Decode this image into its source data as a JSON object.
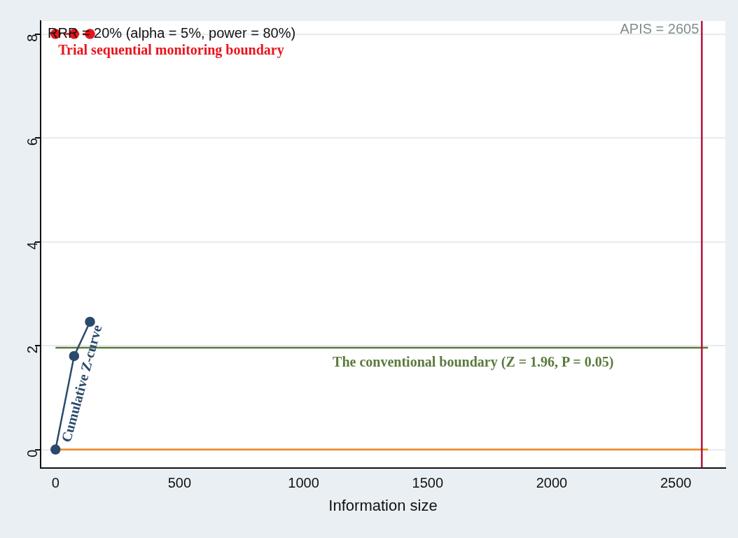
{
  "chart_data": {
    "type": "line",
    "xlabel": "Information size",
    "xlim": [
      -60,
      2700
    ],
    "xticks": [
      0,
      500,
      1000,
      1500,
      2000,
      2500
    ],
    "ylim": [
      -0.35,
      8.25
    ],
    "yticks": [
      0,
      2,
      4,
      6,
      8
    ],
    "grid": "y",
    "legend": false,
    "series": [
      {
        "name": "Trial sequential monitoring boundary",
        "color": "#e8141c",
        "x": [
          0,
          75,
          139
        ],
        "values": [
          8,
          8,
          8
        ],
        "marker": "circle",
        "line_style": "dashed"
      },
      {
        "name": "Cumulative Z-curve",
        "color": "#2b4a6b",
        "x": [
          0,
          75,
          139
        ],
        "values": [
          0,
          1.8,
          2.46
        ],
        "marker": "circle",
        "line_style": "solid"
      },
      {
        "name": "The conventional boundary (Z = 1.96, P = 0.05)",
        "color": "#5b7a3c",
        "x": [
          0,
          2630
        ],
        "values": [
          1.96,
          1.96
        ],
        "marker": "none",
        "line_style": "solid"
      },
      {
        "color": "#e8891e",
        "x": [
          0,
          2630
        ],
        "values": [
          0,
          0
        ],
        "marker": "none",
        "line_style": "solid"
      }
    ],
    "ref_lines": [
      {
        "axis": "x",
        "value": 2605,
        "label": "APIS = 2605",
        "color": "#b5123a"
      }
    ],
    "annotations": [
      "RRR = 20% (alpha = 5%, power = 80%)"
    ]
  }
}
